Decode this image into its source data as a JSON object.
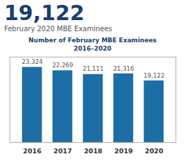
{
  "chart_data": {
    "type": "bar",
    "title": "Number of February MBE Examinees\n2016–2020",
    "annotations": [
      "19,122",
      "February 2020 MBE Examinees"
    ],
    "categories": [
      "2016",
      "2017",
      "2018",
      "2019",
      "2020"
    ],
    "values": [
      23324,
      22269,
      21111,
      21316,
      19122
    ],
    "value_labels": [
      "23,324",
      "22,269",
      "21,111",
      "21,316",
      "19,122"
    ],
    "data_labels": true,
    "color": "#1c6ea4",
    "ylim": [
      0,
      26500
    ],
    "tick_labels": "x",
    "grid": false
  }
}
